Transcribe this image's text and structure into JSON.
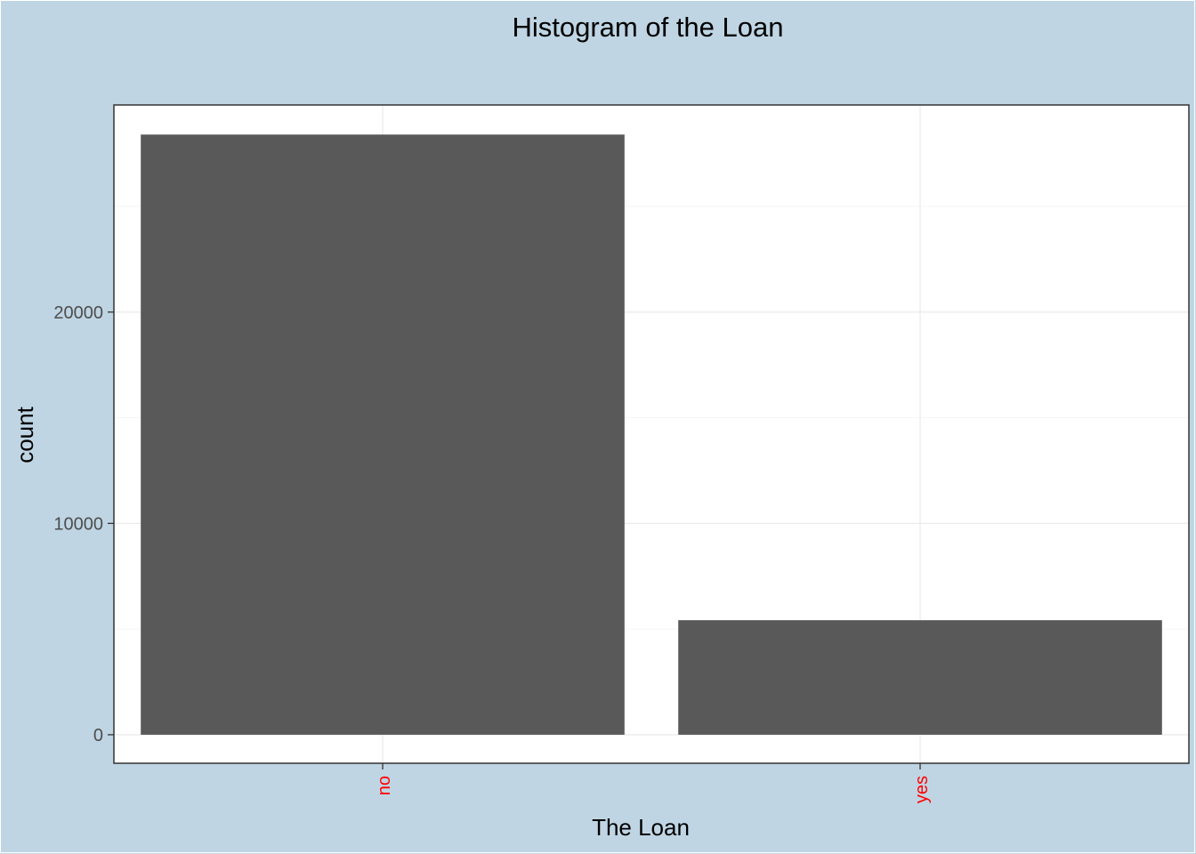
{
  "colors": {
    "plot_background": "#bfd5e3",
    "panel_background": "#ffffff",
    "bar_fill": "#595959",
    "grid_major": "#ebebeb",
    "grid_minor": "#f2f2f2",
    "x_tick_text": "#ff0000"
  },
  "chart_data": {
    "type": "bar",
    "title": "Histogram of the Loan",
    "xlabel": "The Loan",
    "ylabel": "count",
    "categories": [
      "no",
      "yes"
    ],
    "values": [
      28400,
      5420
    ],
    "ylim": [
      -1350,
      29800
    ],
    "yticks": [
      0,
      10000,
      20000
    ],
    "ytick_labels": [
      "0",
      "10000",
      "20000"
    ],
    "grid": true,
    "legend": "none"
  }
}
